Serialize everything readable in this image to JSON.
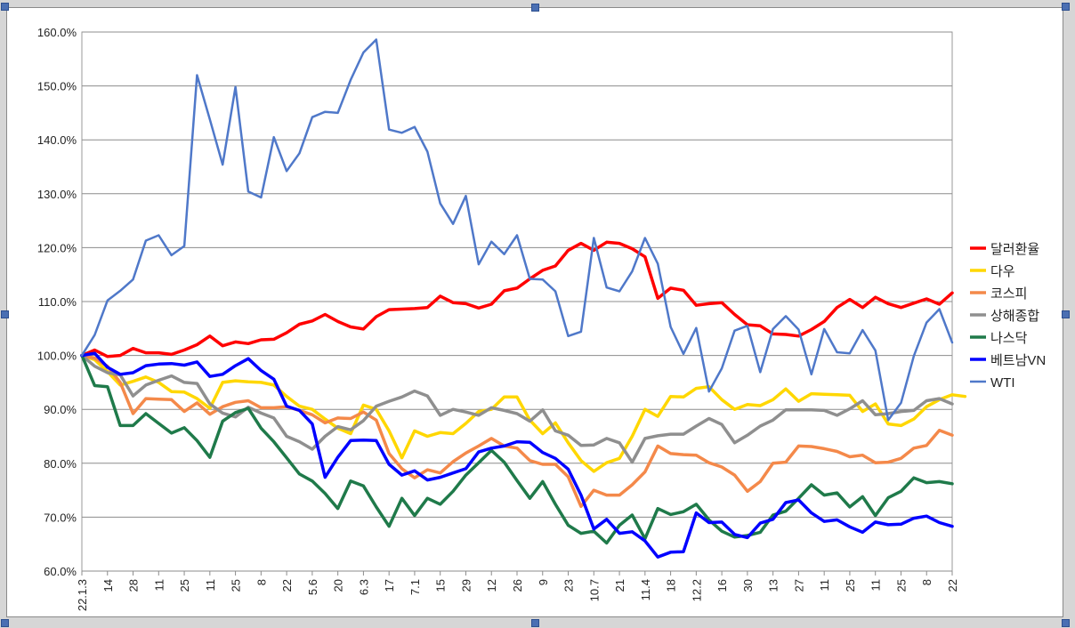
{
  "chart_data": {
    "type": "line",
    "title": "",
    "xlabel": "",
    "ylabel": "",
    "ylim": [
      60,
      160
    ],
    "yticks": [
      "60.0%",
      "70.0%",
      "80.0%",
      "90.0%",
      "100.0%",
      "110.0%",
      "120.0%",
      "130.0%",
      "140.0%",
      "150.0%",
      "160.0%"
    ],
    "x_tick_labels": [
      "22.1.3",
      "14",
      "28",
      "11",
      "25",
      "11",
      "25",
      "8",
      "22",
      "5.6",
      "20",
      "6.3",
      "17",
      "7.1",
      "15",
      "29",
      "12",
      "26",
      "9",
      "23",
      "10.7",
      "21",
      "11.4",
      "18",
      "12.2",
      "16",
      "30",
      "13",
      "27",
      "11",
      "25",
      "11",
      "25",
      "8",
      "22"
    ],
    "grid": true,
    "legend_position": "right",
    "series": [
      {
        "name": "달러환율",
        "color": "#ff0000",
        "width": 3.5,
        "values": [
          100,
          101,
          99.8,
          100,
          101.3,
          100.5,
          100.5,
          100.2,
          101,
          102,
          103.6,
          101.8,
          102.5,
          102.2,
          102.9,
          103,
          104.2,
          105.8,
          106.4,
          107.6,
          106.3,
          105.3,
          104.9,
          107.2,
          108.5,
          108.6,
          108.7,
          108.9,
          111,
          109.8,
          109.6,
          108.8,
          109.5,
          112,
          112.5,
          114.2,
          115.8,
          116.6,
          119.5,
          120.8,
          119.5,
          121,
          120.8,
          119.8,
          118.3,
          110.6,
          112.5,
          112.1,
          109.3,
          109.6,
          109.8,
          107.6,
          105.7,
          105.5,
          104,
          103.9,
          103.6,
          104.8,
          106.3,
          108.9,
          110.4,
          108.9,
          110.8,
          109.6,
          108.9,
          109.7,
          110.5,
          109.5,
          111.6
        ]
      },
      {
        "name": "다우",
        "color": "#ffd700",
        "width": 3.5,
        "values": [
          100,
          99.2,
          97,
          94.5,
          95.2,
          96,
          95,
          93.3,
          93.2,
          92,
          90.2,
          95,
          95.3,
          95.1,
          95,
          94.5,
          92.4,
          90.6,
          90,
          88.2,
          86.5,
          85.5,
          90.8,
          90,
          86,
          81,
          86,
          85,
          85.7,
          85.5,
          87.4,
          89.6,
          90,
          92.3,
          92.3,
          88,
          85.5,
          87.5,
          83.8,
          80.5,
          78.5,
          80.1,
          80.9,
          85,
          90,
          88.7,
          92.4,
          92.3,
          93.9,
          94.2,
          91.8,
          90,
          90.9,
          90.7,
          91.8,
          93.8,
          91.5,
          92.9,
          92.8,
          92.7,
          92.6,
          89.6,
          91,
          87.3,
          87,
          88.2,
          90.5,
          91.8,
          92.7,
          92.4
        ]
      },
      {
        "name": "코스피",
        "color": "#f4894a",
        "width": 3.5,
        "values": [
          100,
          99.5,
          98,
          95,
          89.2,
          92,
          91.9,
          91.8,
          89.6,
          91.2,
          89.1,
          90.5,
          91.3,
          91.6,
          90.3,
          90.3,
          90.5,
          89.8,
          89,
          87.5,
          88.4,
          88.3,
          89.5,
          88,
          81.8,
          79,
          77.3,
          78.8,
          78.2,
          80.3,
          81.9,
          83.2,
          84.6,
          83.2,
          82.8,
          80.5,
          79.8,
          79.8,
          77.5,
          72,
          75,
          74.1,
          74.1,
          76,
          78.4,
          83.2,
          81.8,
          81.6,
          81.5,
          80.1,
          79.3,
          77.8,
          74.8,
          76.6,
          80,
          80.2,
          83.2,
          83.1,
          82.7,
          82.2,
          81.2,
          81.5,
          80.1,
          80.2,
          80.9,
          82.8,
          83.3,
          86.1,
          85.2
        ]
      },
      {
        "name": "상해종합",
        "color": "#8f8f8f",
        "width": 3.5,
        "values": [
          100,
          98,
          96.8,
          96.4,
          92.5,
          94.5,
          95.4,
          96.2,
          95,
          94.8,
          91,
          89.3,
          88.6,
          90.4,
          89.3,
          88.4,
          85,
          84,
          82.6,
          85,
          86.8,
          86.2,
          87.9,
          90.6,
          91.5,
          92.3,
          93.4,
          92.5,
          88.9,
          90,
          89.5,
          88.9,
          90.3,
          89.8,
          89.2,
          87.8,
          89.9,
          86,
          85.2,
          83.3,
          83.4,
          84.6,
          83.8,
          80.2,
          84.6,
          85.1,
          85.4,
          85.4,
          86.9,
          88.3,
          87.2,
          83.8,
          85.2,
          86.9,
          88,
          89.9,
          89.9,
          89.9,
          89.8,
          88.9,
          90.1,
          91.6,
          89,
          89.2,
          89.6,
          89.8,
          91.6,
          92,
          91
        ]
      },
      {
        "name": "나스닥",
        "color": "#1f7a4a",
        "width": 3.5,
        "values": [
          100,
          94.4,
          94.2,
          87,
          87,
          89.2,
          87.4,
          85.6,
          86.6,
          84.2,
          81.1,
          87.8,
          89.4,
          90.2,
          86.5,
          84,
          81,
          78,
          76.7,
          74.4,
          71.6,
          76.7,
          75.8,
          71.9,
          68.3,
          73.5,
          70.3,
          73.5,
          72.4,
          74.8,
          77.8,
          80.1,
          82.4,
          80.2,
          76.8,
          73.5,
          76.6,
          72.4,
          68.5,
          67,
          67.4,
          65.2,
          68.5,
          70.4,
          66,
          71.6,
          70.5,
          71,
          72.4,
          69.5,
          67.4,
          66.3,
          66.6,
          67.2,
          70.4,
          71.1,
          73.5,
          76,
          74.1,
          74.5,
          71.9,
          73.8,
          70.3,
          73.6,
          74.8,
          77.3,
          76.4,
          76.6,
          76.2
        ]
      },
      {
        "name": "베트남VN",
        "color": "#0000ff",
        "width": 3.5,
        "values": [
          100,
          100.4,
          97.8,
          96.5,
          96.8,
          98.1,
          98.4,
          98.5,
          98.2,
          98.8,
          96.1,
          96.5,
          98.1,
          99.4,
          97.2,
          95.6,
          90.6,
          89.8,
          87.3,
          77.4,
          81.1,
          84.2,
          84.3,
          84.2,
          79.8,
          77.8,
          78.6,
          76.9,
          77.4,
          78.2,
          79,
          82.1,
          82.8,
          83.2,
          84,
          83.9,
          82,
          80.9,
          78.9,
          74.1,
          67.8,
          69.6,
          67,
          67.3,
          65.6,
          62.6,
          63.5,
          63.6,
          70.8,
          69,
          69.1,
          66.8,
          66.2,
          68.9,
          69.6,
          72.7,
          73.2,
          70.8,
          69.2,
          69.5,
          68.2,
          67.2,
          69.1,
          68.6,
          68.7,
          69.8,
          70.2,
          69,
          68.3
        ]
      },
      {
        "name": "WTI",
        "color": "#4f78c9",
        "width": 2.5,
        "values": [
          100,
          103.8,
          110.2,
          112,
          114.1,
          121.3,
          122.3,
          118.6,
          120.3,
          152,
          143.8,
          135.4,
          149.8,
          130.4,
          129.3,
          140.5,
          134.2,
          137.5,
          144.2,
          145.2,
          145,
          151.1,
          156.2,
          158.6,
          141.9,
          141.3,
          142.4,
          137.8,
          128.2,
          124.4,
          129.6,
          116.9,
          121.1,
          118.8,
          122.3,
          114.2,
          114.1,
          111.9,
          103.6,
          104.4,
          121.8,
          112.6,
          111.9,
          115.6,
          121.8,
          117,
          105.3,
          100.3,
          105.1,
          93.3,
          97.6,
          104.6,
          105.5,
          96.9,
          104.9,
          107.3,
          104.8,
          96.5,
          104.9,
          100.6,
          100.4,
          104.7,
          100.9,
          88,
          91.2,
          99.9,
          106.1,
          108.6,
          102.4
        ]
      }
    ]
  }
}
